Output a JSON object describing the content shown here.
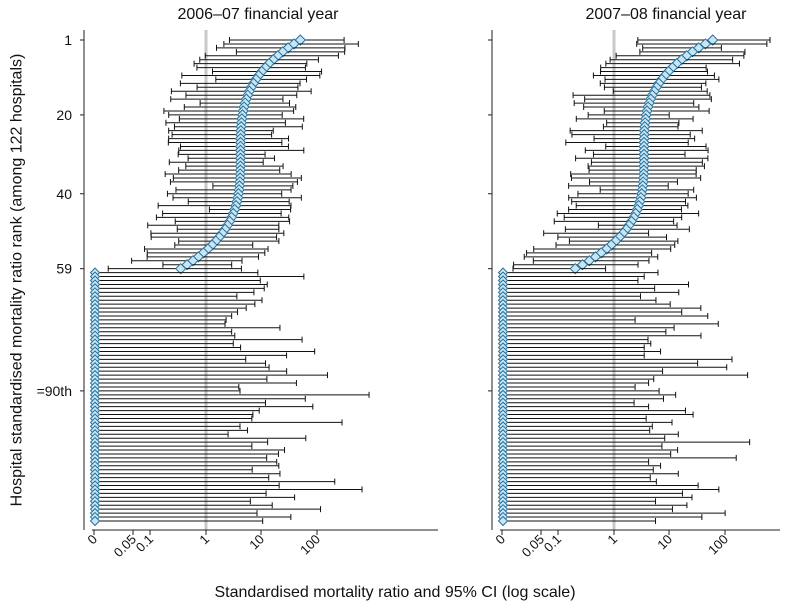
{
  "chart_data": {
    "type": "scatter",
    "ylabel": "Hospital standardised mortality ratio rank (among 122 hospitals)",
    "xlabel": "Standardised mortality ratio and 95% CI (log scale)",
    "x_scale": "log",
    "x_ticks": [
      "0",
      "0.05",
      "0.1",
      "1",
      "10",
      "100"
    ],
    "y_ticks": [
      {
        "rank": 1,
        "label": "1"
      },
      {
        "rank": 20,
        "label": "20"
      },
      {
        "rank": 40,
        "label": "40"
      },
      {
        "rank": 59,
        "label": "59"
      },
      {
        "rank": 90,
        "label": "=90th"
      }
    ],
    "reference_line": 1,
    "n_ranked": 59,
    "n_zero": 64,
    "colors": {
      "marker_fill": "#c6e6f6",
      "marker_stroke": "#2a6f96",
      "ci": "#111111",
      "reference": "#c8c8c8"
    },
    "panels": [
      {
        "title": "2006–07 financial year",
        "smr_range": [
          50,
          0.35
        ],
        "zero_ci_upper": [
          8.6,
          58,
          9.5,
          12.7,
          11.2,
          7.3,
          3.6,
          10.2,
          7.6,
          5.3,
          3.7,
          2.9,
          2.3,
          2.2,
          21.5,
          2.9,
          3.3,
          53.8,
          3.1,
          4.2,
          90.8,
          28.3,
          5.2,
          11.8,
          13.7,
          28.4,
          154.4,
          12.5,
          42.6,
          3.9,
          4.1,
          866.6,
          61.5,
          11.8,
          84.1,
          9.1,
          7.0,
          6.7,
          282.5,
          4.1,
          5.6,
          2.5,
          62.8,
          12.9,
          6.7,
          26.0,
          20.2,
          12.4,
          18.8,
          20.5,
          6.8,
          21.5,
          13.5,
          208.9,
          20.8,
          647.7,
          12.1,
          39.5,
          6.3,
          15.6,
          115.8,
          8.3,
          33.8,
          10.5
        ]
      },
      {
        "title": "2007–08 financial year",
        "smr_range": [
          60,
          0.2
        ],
        "zero_ci_upper": [
          6.2,
          3.5,
          2.7,
          22.0,
          5.4,
          14.7,
          3.0,
          5.7,
          10.3,
          36.7,
          16.6,
          48.9,
          2.4,
          75.6,
          12.1,
          8.6,
          36.9,
          4.1,
          4.6,
          3.5,
          6.9,
          3.5,
          133.5,
          32.1,
          107.4,
          7.5,
          255.5,
          5.2,
          4.2,
          2.4,
          6.5,
          12.9,
          7.8,
          2.3,
          4.2,
          19.4,
          26.6,
          3.8,
          11.1,
          4.9,
          4.4,
          14.4,
          8.2,
          278.0,
          7.3,
          14.0,
          10.5,
          159.3,
          4.2,
          6.9,
          5.1,
          14.4,
          4.5,
          5.8,
          32.8,
          77.5,
          17.1,
          25.4,
          5.6,
          20.6,
          11.3,
          100.6,
          38.3,
          5.6
        ]
      }
    ]
  }
}
